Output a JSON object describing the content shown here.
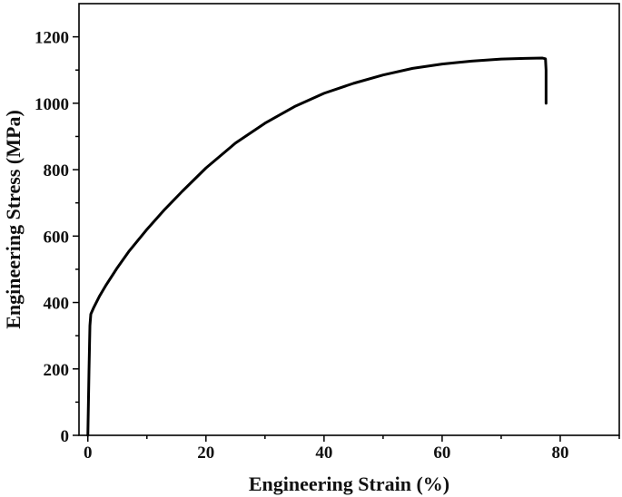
{
  "chart_data": {
    "type": "line",
    "title": "",
    "xlabel": "Engineering Strain (%)",
    "ylabel": "Engineering Stress (MPa)",
    "xlim": [
      -1.5,
      90
    ],
    "ylim": [
      0,
      1300
    ],
    "x_ticks": [
      0,
      20,
      40,
      60,
      80
    ],
    "y_ticks": [
      0,
      200,
      400,
      600,
      800,
      1000,
      1200
    ],
    "x_minor_step": 10,
    "y_minor_step": 100,
    "grid": false,
    "legend": "none",
    "line_color": "#000000",
    "series": [
      {
        "x": [
          0,
          0.2,
          0.35,
          0.5,
          1.0,
          2.0,
          3.0,
          5.0,
          7.0,
          10.0,
          13.0,
          16.0,
          20.0,
          25.0,
          30.0,
          35.0,
          40.0,
          45.0,
          50.0,
          55.0,
          60.0,
          65.0,
          70.0,
          74.0,
          77.0,
          77.5,
          77.6,
          77.6
        ],
        "y": [
          0,
          200,
          330,
          365,
          385,
          420,
          450,
          505,
          555,
          620,
          680,
          735,
          805,
          880,
          940,
          990,
          1030,
          1060,
          1085,
          1105,
          1118,
          1127,
          1133,
          1135,
          1136,
          1134,
          1100,
          1000
        ]
      }
    ]
  }
}
